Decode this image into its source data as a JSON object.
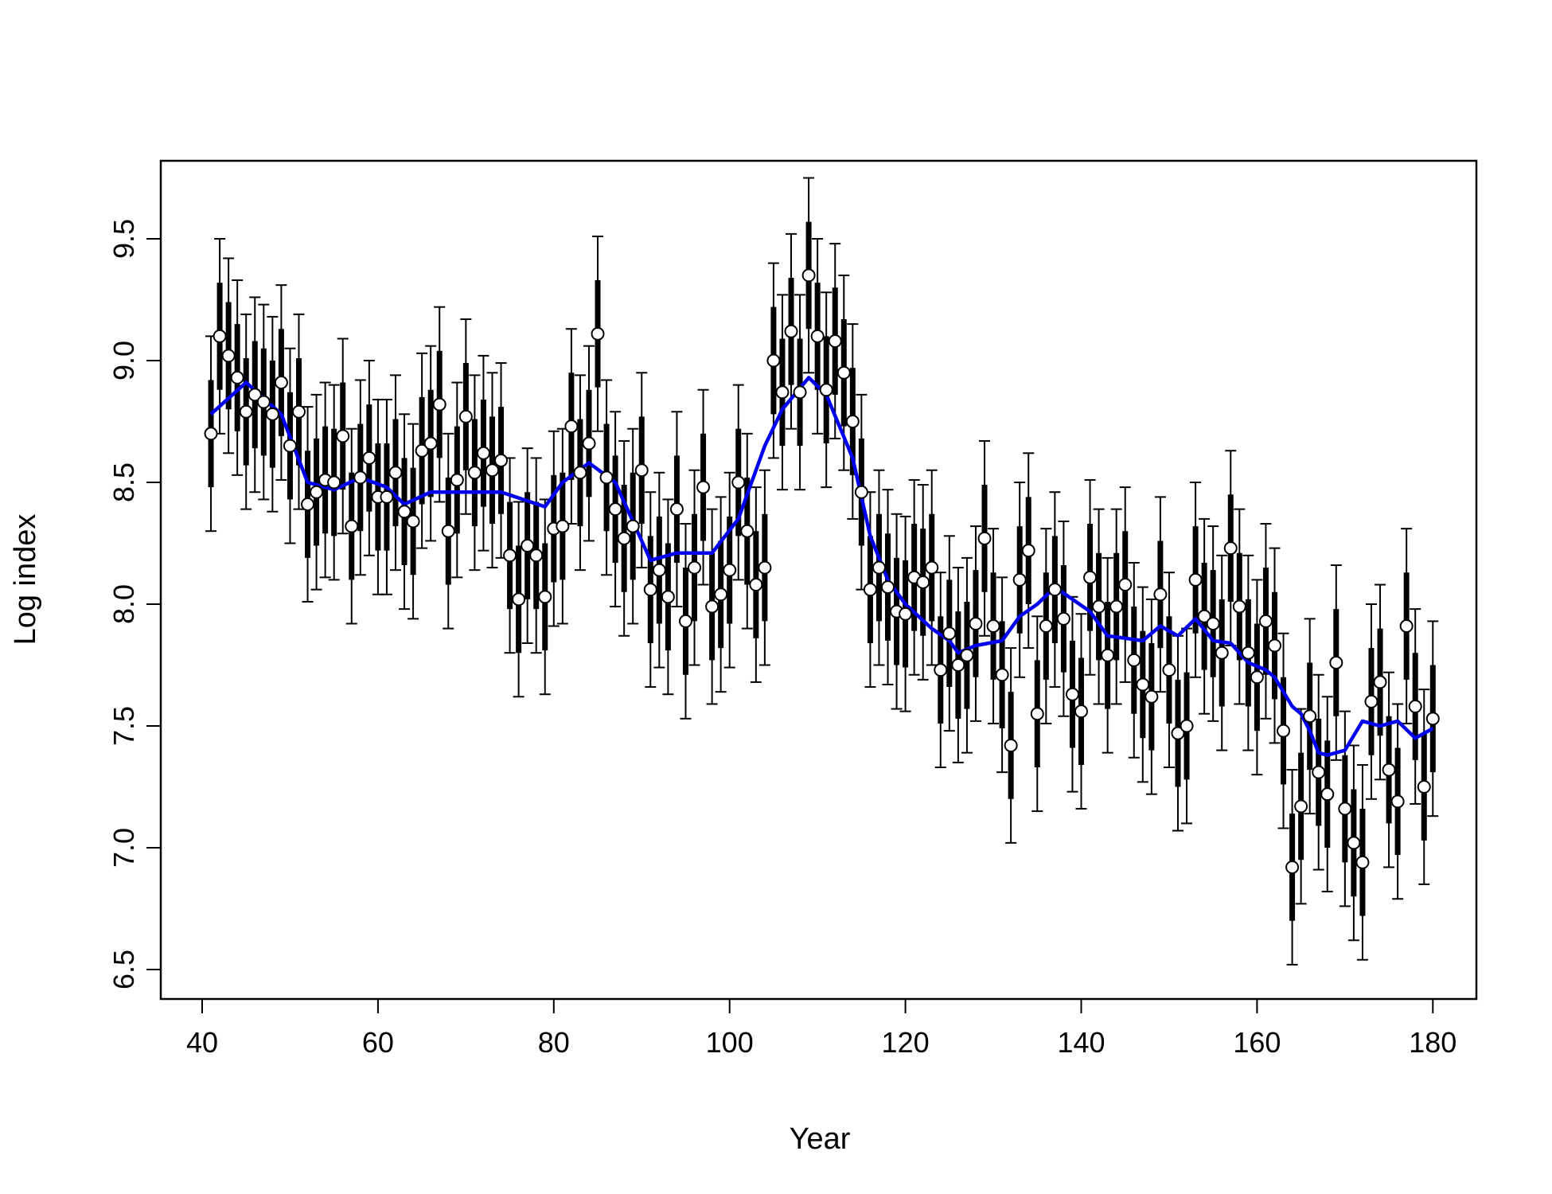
{
  "chart_data": {
    "type": "scatter",
    "title": "",
    "xlabel": "Year",
    "ylabel": "Log index",
    "xlim": [
      41,
      180
    ],
    "ylim": [
      6.5,
      9.7
    ],
    "x_ticks": [
      "40",
      "60",
      "80",
      "100",
      "120",
      "140",
      "160",
      "180"
    ],
    "y_ticks": [
      "6.5",
      "7.0",
      "7.5",
      "8.0",
      "8.5",
      "9.0",
      "9.5"
    ],
    "grid": false,
    "legend": "none",
    "colors": {
      "points": "#000000",
      "smooth": "#0000ee"
    },
    "series": [
      {
        "type": "scatter-with-intervals",
        "x_start": 41,
        "values": [
          8.7,
          9.1,
          9.02,
          8.93,
          8.79,
          8.86,
          8.83,
          8.78,
          8.91,
          8.65,
          8.79,
          8.41,
          8.46,
          8.51,
          8.5,
          8.69,
          8.32,
          8.52,
          8.6,
          8.44,
          8.44,
          8.54,
          8.38,
          8.34,
          8.63,
          8.66,
          8.82,
          8.3,
          8.51,
          8.77,
          8.54,
          8.62,
          8.55,
          8.59,
          8.2,
          8.02,
          8.24,
          8.2,
          8.03,
          8.31,
          8.32,
          8.73,
          8.54,
          8.66,
          9.11,
          8.52,
          8.39,
          8.27,
          8.32,
          8.55,
          8.06,
          8.14,
          8.03,
          8.39,
          7.93,
          8.15,
          8.48,
          7.99,
          8.04,
          8.14,
          8.5,
          8.3,
          8.08,
          8.15,
          9.0,
          8.87,
          9.12,
          8.87,
          9.35,
          9.1,
          8.88,
          9.08,
          8.95,
          8.75,
          8.46,
          8.06,
          8.15,
          8.07,
          7.97,
          7.96,
          8.11,
          8.09,
          8.15,
          7.73,
          7.88,
          7.75,
          7.79,
          7.92,
          8.27,
          7.91,
          7.71,
          7.42,
          8.1,
          8.22,
          7.55,
          7.91,
          8.06,
          7.94,
          7.63,
          7.56,
          8.11,
          7.99,
          7.79,
          7.99,
          8.08,
          7.77,
          7.67,
          7.62,
          8.04,
          7.73,
          7.47,
          7.5,
          8.1,
          7.95,
          7.92,
          7.8,
          8.23,
          7.99,
          7.8,
          7.7,
          7.93,
          7.83,
          7.48,
          6.92,
          7.17,
          7.54,
          7.31,
          7.22,
          7.76,
          7.16,
          7.02,
          6.94,
          7.6,
          7.68,
          7.32,
          7.19,
          7.91,
          7.58,
          7.25,
          7.53
        ],
        "inner_halfwidth": 0.22,
        "outer_halfwidth": 0.4
      },
      {
        "type": "line",
        "x": [
          41,
          45,
          49,
          52,
          55,
          58,
          61,
          63,
          66,
          70,
          74,
          79,
          81,
          84,
          87,
          89,
          91,
          94,
          98,
          101,
          104,
          106,
          109,
          111,
          114,
          116,
          118,
          120,
          123,
          125,
          126,
          128,
          131,
          133,
          135,
          137,
          139,
          141,
          143,
          145,
          147,
          149,
          151,
          153,
          155,
          157,
          159,
          161,
          162,
          164,
          165,
          166,
          167,
          168,
          170,
          172,
          174,
          176,
          178,
          180
        ],
        "y": [
          8.78,
          8.91,
          8.78,
          8.5,
          8.47,
          8.52,
          8.48,
          8.41,
          8.46,
          8.46,
          8.46,
          8.4,
          8.5,
          8.58,
          8.5,
          8.34,
          8.18,
          8.21,
          8.21,
          8.35,
          8.65,
          8.8,
          8.93,
          8.86,
          8.6,
          8.28,
          8.1,
          8.0,
          7.9,
          7.85,
          7.8,
          7.83,
          7.85,
          7.95,
          8.0,
          8.07,
          8.02,
          7.97,
          7.87,
          7.86,
          7.85,
          7.91,
          7.87,
          7.94,
          7.85,
          7.84,
          7.76,
          7.73,
          7.7,
          7.58,
          7.55,
          7.48,
          7.39,
          7.38,
          7.4,
          7.52,
          7.5,
          7.52,
          7.45,
          7.49
        ]
      }
    ]
  }
}
